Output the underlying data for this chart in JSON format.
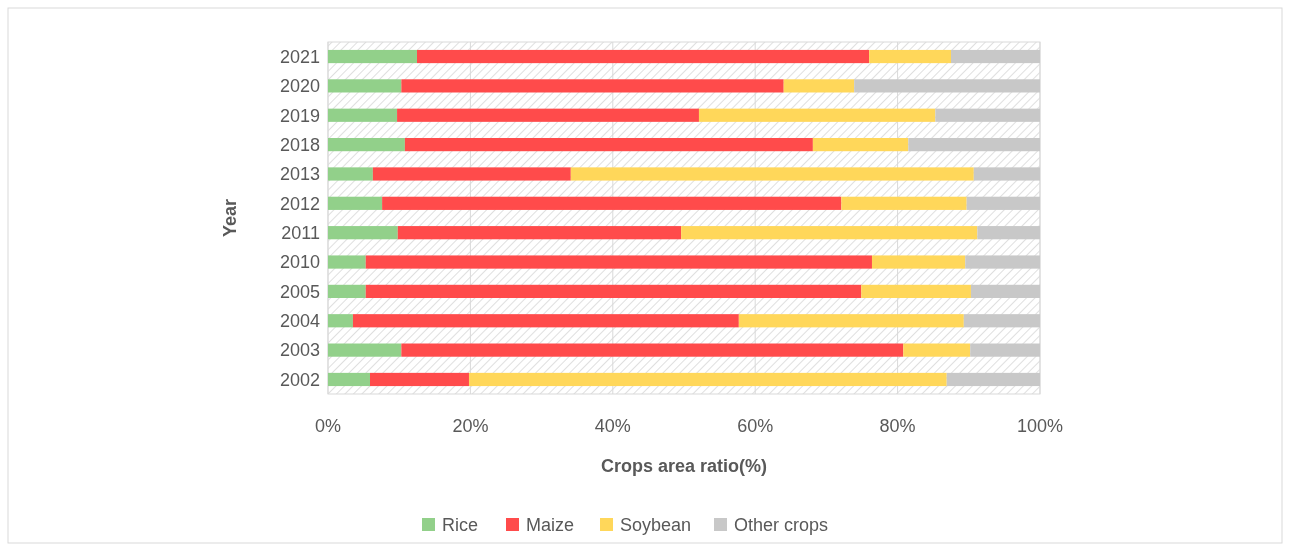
{
  "chart_data": {
    "type": "bar",
    "orientation": "horizontal",
    "stacked": true,
    "xlabel": "Crops area ratio(%)",
    "ylabel": "Year",
    "categories": [
      "2021",
      "2020",
      "2019",
      "2018",
      "2013",
      "2012",
      "2011",
      "2010",
      "2005",
      "2004",
      "2003",
      "2002"
    ],
    "series": [
      {
        "name": "Rice",
        "color": "#92d08a",
        "values": [
          12.5,
          10.3,
          9.7,
          10.8,
          6.3,
          7.6,
          9.8,
          5.3,
          5.3,
          3.5,
          10.3,
          5.9
        ]
      },
      {
        "name": "Maize",
        "color": "#ff4b4b",
        "values": [
          63.5,
          53.7,
          42.4,
          57.3,
          27.8,
          64.5,
          39.8,
          71.1,
          69.6,
          54.2,
          70.5,
          13.9
        ]
      },
      {
        "name": "Soybean",
        "color": "#ffd75a",
        "values": [
          11.5,
          9.9,
          33.2,
          13.4,
          56.6,
          17.6,
          41.6,
          13.1,
          15.4,
          31.6,
          9.4,
          67.1
        ]
      },
      {
        "name": "Other crops",
        "color": "#c8c8c8",
        "values": [
          12.5,
          26.1,
          14.7,
          18.5,
          9.3,
          10.3,
          8.8,
          10.5,
          9.7,
          10.7,
          9.8,
          13.1
        ]
      }
    ],
    "xlim": [
      0,
      100
    ],
    "xticks": [
      {
        "value": 0,
        "label": "0%"
      },
      {
        "value": 20,
        "label": "20%"
      },
      {
        "value": 40,
        "label": "40%"
      },
      {
        "value": 60,
        "label": "60%"
      },
      {
        "value": 80,
        "label": "80%"
      },
      {
        "value": 100,
        "label": "100%"
      }
    ],
    "grid": "x",
    "legend": "bottom"
  }
}
